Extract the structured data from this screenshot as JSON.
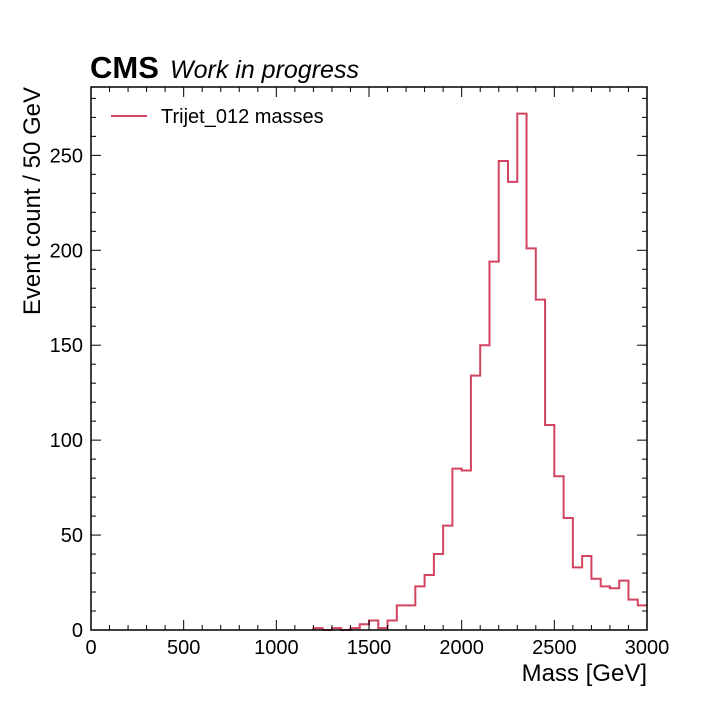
{
  "header": {
    "experiment": "CMS",
    "status": "Work in progress"
  },
  "chart_data": {
    "type": "histogram-step",
    "xlabel": "Mass [GeV]",
    "ylabel": "Event count / 50 GeV",
    "xlim": [
      0,
      3000
    ],
    "ylim": [
      0,
      286
    ],
    "x_ticks": [
      0,
      500,
      1000,
      1500,
      2000,
      2500,
      3000
    ],
    "y_ticks": [
      0,
      50,
      100,
      150,
      200,
      250
    ],
    "x_minor_step": 100,
    "y_minor_step": 10,
    "bin_width": 50,
    "grid": false,
    "legend_position": "top-left",
    "series": [
      {
        "name": "Trijet_012 masses",
        "color": "#d2445f",
        "bin_edges": [
          1200,
          1250,
          1300,
          1350,
          1400,
          1450,
          1500,
          1550,
          1600,
          1650,
          1700,
          1750,
          1800,
          1850,
          1900,
          1950,
          2000,
          2050,
          2100,
          2150,
          2200,
          2250,
          2300,
          2350,
          2400,
          2450,
          2500,
          2550,
          2600,
          2650,
          2700,
          2750,
          2800,
          2850,
          2900,
          2950,
          3000
        ],
        "values": [
          1,
          0,
          1,
          0,
          1,
          3,
          5,
          1,
          5,
          13,
          13,
          23,
          29,
          40,
          55,
          85,
          84,
          134,
          150,
          194,
          247,
          236,
          272,
          201,
          174,
          108,
          81,
          59,
          33,
          39,
          27,
          23,
          22,
          26,
          16,
          13
        ]
      }
    ]
  }
}
